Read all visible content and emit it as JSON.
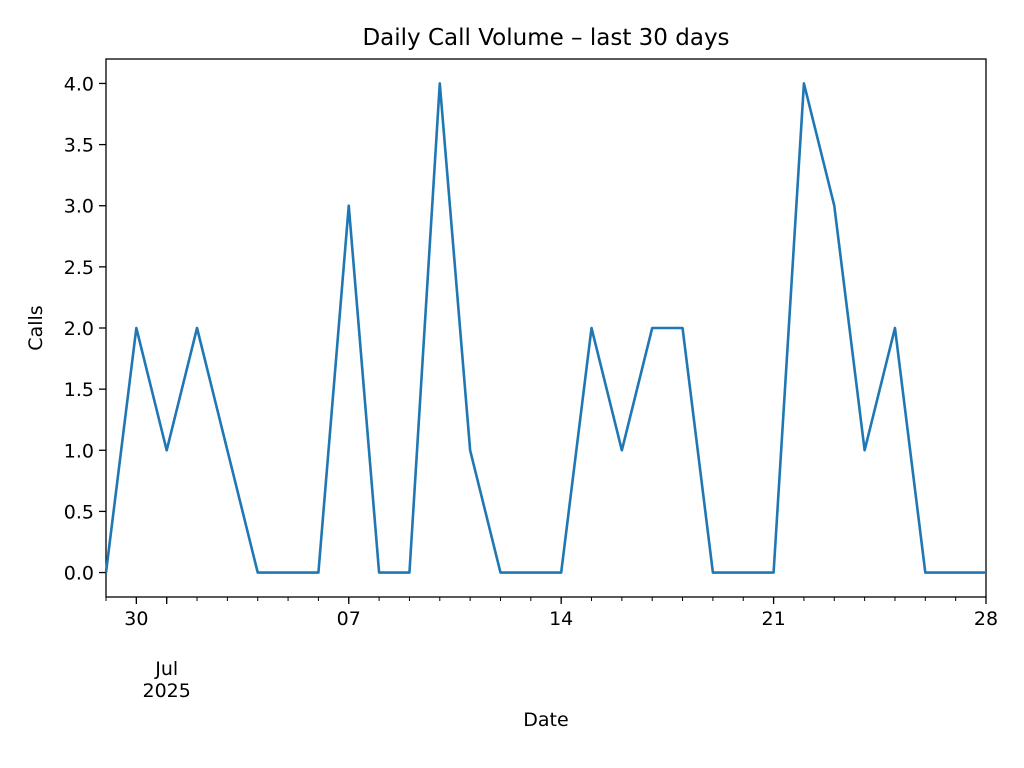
{
  "chart_data": {
    "type": "line",
    "title": "Daily Call Volume – last 30 days",
    "xlabel": "Date",
    "ylabel": "Calls",
    "x": [
      "2025-06-29",
      "2025-06-30",
      "2025-07-01",
      "2025-07-02",
      "2025-07-03",
      "2025-07-04",
      "2025-07-05",
      "2025-07-06",
      "2025-07-07",
      "2025-07-08",
      "2025-07-09",
      "2025-07-10",
      "2025-07-11",
      "2025-07-12",
      "2025-07-13",
      "2025-07-14",
      "2025-07-15",
      "2025-07-16",
      "2025-07-17",
      "2025-07-18",
      "2025-07-19",
      "2025-07-20",
      "2025-07-21",
      "2025-07-22",
      "2025-07-23",
      "2025-07-24",
      "2025-07-25",
      "2025-07-26",
      "2025-07-27",
      "2025-07-28"
    ],
    "series": [
      {
        "values": [
          0,
          2,
          1,
          2,
          1,
          0,
          0,
          0,
          3,
          0,
          0,
          4,
          1,
          0,
          0,
          0,
          2,
          1,
          2,
          2,
          0,
          0,
          0,
          4,
          3,
          1,
          2,
          0,
          0,
          0
        ]
      }
    ],
    "xlim": [
      "2025-06-29",
      "2025-07-28"
    ],
    "ylim": [
      -0.2,
      4.2
    ],
    "y_ticks": [
      0.0,
      0.5,
      1.0,
      1.5,
      2.0,
      2.5,
      3.0,
      3.5,
      4.0
    ],
    "y_tick_labels": [
      "0.0",
      "0.5",
      "1.0",
      "1.5",
      "2.0",
      "2.5",
      "3.0",
      "3.5",
      "4.0"
    ],
    "x_major_ticks": [
      {
        "date": "2025-06-30",
        "label": "30"
      },
      {
        "date": "2025-07-01",
        "label": "",
        "sublabels": [
          "Jul",
          "2025"
        ]
      },
      {
        "date": "2025-07-07",
        "label": "07"
      },
      {
        "date": "2025-07-14",
        "label": "14"
      },
      {
        "date": "2025-07-21",
        "label": "21"
      },
      {
        "date": "2025-07-28",
        "label": "28"
      }
    ],
    "grid": false,
    "line_color": "#1f77b4"
  }
}
